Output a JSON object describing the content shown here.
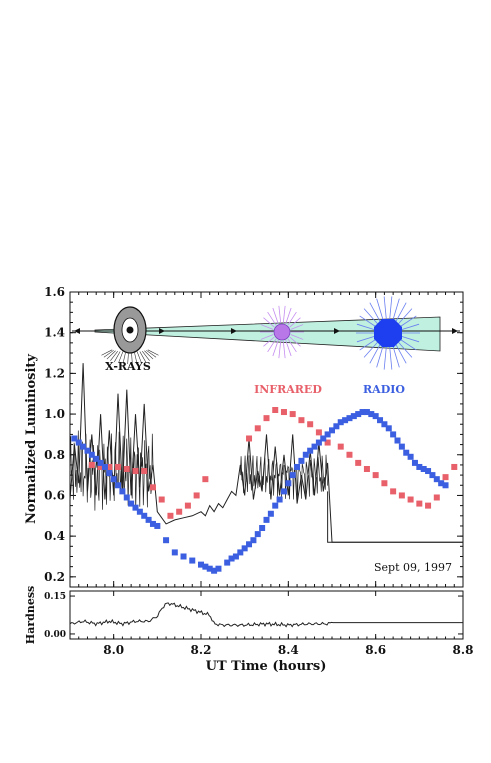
{
  "chart_data": [
    {
      "type": "scatter",
      "panel": "luminosity",
      "xlabel": "UT Time (hours)",
      "ylabel": "Normalized Luminosity",
      "xlim": [
        7.9,
        8.8
      ],
      "ylim": [
        0.15,
        1.6
      ],
      "x_ticks": [
        "8.0",
        "8.2",
        "8.4",
        "8.6",
        "8.8"
      ],
      "x_tick_values": [
        8.0,
        8.2,
        8.4,
        8.6,
        8.8
      ],
      "y_ticks": [
        "0.2",
        "0.4",
        "0.6",
        "0.8",
        "1.0",
        "1.2",
        "1.4",
        "1.6"
      ],
      "y_tick_values": [
        0.2,
        0.4,
        0.6,
        0.8,
        1.0,
        1.2,
        1.4,
        1.6
      ],
      "annotation": "Sept 09, 1997",
      "series": [
        {
          "name": "X-RAYS",
          "color": "#222222",
          "style": "line",
          "x": [
            7.9,
            7.91,
            7.92,
            7.93,
            7.94,
            7.95,
            7.96,
            7.97,
            7.98,
            7.99,
            8.0,
            8.01,
            8.02,
            8.03,
            8.04,
            8.05,
            8.06,
            8.07,
            8.08,
            8.09,
            8.1,
            8.12,
            8.14,
            8.16,
            8.18,
            8.2,
            8.21,
            8.22,
            8.23,
            8.24,
            8.25,
            8.26,
            8.27,
            8.28,
            8.29,
            8.3,
            8.31,
            8.32,
            8.33,
            8.34,
            8.35,
            8.36,
            8.37,
            8.38,
            8.39,
            8.4,
            8.41,
            8.42,
            8.43,
            8.44,
            8.45,
            8.46,
            8.47,
            8.48,
            8.49,
            8.5,
            8.8
          ],
          "y": [
            0.58,
            0.85,
            0.66,
            1.25,
            0.62,
            0.9,
            0.6,
            1.0,
            0.58,
            0.92,
            0.6,
            1.1,
            0.62,
            1.12,
            0.6,
            1.0,
            0.64,
            1.05,
            0.62,
            0.75,
            0.52,
            0.46,
            0.48,
            0.49,
            0.5,
            0.52,
            0.5,
            0.55,
            0.52,
            0.56,
            0.54,
            0.58,
            0.62,
            0.6,
            0.75,
            0.6,
            0.88,
            0.58,
            0.72,
            0.62,
            0.9,
            0.58,
            0.84,
            0.6,
            0.8,
            0.6,
            0.9,
            0.56,
            0.7,
            0.58,
            0.82,
            0.6,
            0.86,
            0.62,
            0.76,
            0.37,
            0.37
          ]
        },
        {
          "name": "INFRARED",
          "color": "#e8606a",
          "style": "markers",
          "x": [
            7.94,
            7.96,
            7.98,
            8.0,
            8.02,
            8.04,
            8.06,
            8.08,
            8.1,
            8.12,
            8.14,
            8.16,
            8.18,
            8.2,
            8.3,
            8.32,
            8.34,
            8.36,
            8.38,
            8.4,
            8.42,
            8.44,
            8.46,
            8.48,
            8.51,
            8.53,
            8.55,
            8.57,
            8.59,
            8.61,
            8.63,
            8.65,
            8.67,
            8.69,
            8.71,
            8.73,
            8.75,
            8.79
          ],
          "y": [
            0.75,
            0.74,
            0.74,
            0.74,
            0.73,
            0.72,
            0.72,
            0.66,
            0.6,
            0.52,
            0.52,
            0.54,
            0.58,
            0.66,
            0.87,
            0.92,
            0.97,
            1.02,
            1.01,
            1.0,
            0.97,
            0.96,
            0.92,
            0.86,
            0.84,
            0.82,
            0.76,
            0.72,
            0.7,
            0.66,
            0.62,
            0.6,
            0.57,
            0.56,
            0.55,
            0.58,
            0.68,
            0.75
          ],
          "x_marks": [
            7.95,
            7.97,
            7.99,
            8.01,
            8.03,
            8.05,
            8.07,
            8.09,
            8.11,
            8.13,
            8.15,
            8.17,
            8.19,
            8.21,
            8.31,
            8.33,
            8.35,
            8.37,
            8.39,
            8.41,
            8.43,
            8.45,
            8.47,
            8.49,
            8.52,
            8.54,
            8.56,
            8.58,
            8.6,
            8.62,
            8.64,
            8.66,
            8.68,
            8.7,
            8.72,
            8.74,
            8.76,
            8.78
          ],
          "y_marks": [
            0.75,
            0.74,
            0.74,
            0.74,
            0.73,
            0.72,
            0.72,
            0.64,
            0.58,
            0.5,
            0.52,
            0.55,
            0.6,
            0.68,
            0.88,
            0.93,
            0.98,
            1.02,
            1.01,
            1.0,
            0.97,
            0.95,
            0.91,
            0.86,
            0.84,
            0.8,
            0.76,
            0.73,
            0.7,
            0.66,
            0.62,
            0.6,
            0.58,
            0.56,
            0.55,
            0.59,
            0.69,
            0.74
          ]
        },
        {
          "name": "RADIO",
          "color": "#3b5fe0",
          "style": "markers",
          "x": [
            7.91,
            7.92,
            7.93,
            7.94,
            7.95,
            7.96,
            7.97,
            7.98,
            7.99,
            8.0,
            8.01,
            8.02,
            8.03,
            8.04,
            8.05,
            8.06,
            8.07,
            8.08,
            8.09,
            8.1,
            8.12,
            8.14,
            8.16,
            8.18,
            8.2,
            8.21,
            8.22,
            8.23,
            8.24,
            8.26,
            8.27,
            8.28,
            8.29,
            8.3,
            8.31,
            8.32,
            8.33,
            8.34,
            8.35,
            8.36,
            8.37,
            8.38,
            8.39,
            8.4,
            8.41,
            8.42,
            8.43,
            8.44,
            8.45,
            8.46,
            8.47,
            8.48,
            8.49,
            8.5,
            8.51,
            8.52,
            8.53,
            8.54,
            8.55,
            8.56,
            8.57,
            8.58,
            8.59,
            8.6,
            8.61,
            8.62,
            8.63,
            8.64,
            8.65,
            8.66,
            8.67,
            8.68,
            8.69,
            8.7,
            8.71,
            8.72,
            8.73,
            8.74,
            8.75,
            8.76
          ],
          "y": [
            0.88,
            0.86,
            0.84,
            0.82,
            0.8,
            0.78,
            0.76,
            0.74,
            0.71,
            0.68,
            0.65,
            0.62,
            0.59,
            0.56,
            0.54,
            0.52,
            0.5,
            0.48,
            0.46,
            0.45,
            0.38,
            0.32,
            0.3,
            0.28,
            0.26,
            0.25,
            0.24,
            0.23,
            0.24,
            0.27,
            0.29,
            0.3,
            0.32,
            0.34,
            0.36,
            0.38,
            0.41,
            0.44,
            0.48,
            0.51,
            0.55,
            0.58,
            0.62,
            0.66,
            0.7,
            0.74,
            0.77,
            0.8,
            0.82,
            0.84,
            0.86,
            0.88,
            0.9,
            0.92,
            0.94,
            0.96,
            0.97,
            0.98,
            0.99,
            1.0,
            1.01,
            1.01,
            1.0,
            0.99,
            0.97,
            0.95,
            0.93,
            0.9,
            0.87,
            0.84,
            0.81,
            0.79,
            0.76,
            0.74,
            0.73,
            0.72,
            0.7,
            0.68,
            0.66,
            0.65
          ]
        }
      ],
      "diagram_labels": {
        "xray": "X-RAYS",
        "infrared": "INFRARED",
        "radio": "RADIO"
      },
      "colors": {
        "jet": "#bff0e0",
        "xray_disk": "#999999",
        "infrared_blob": "#b878e8",
        "radio_blob": "#1d3ff0"
      }
    },
    {
      "type": "line",
      "panel": "hardness",
      "ylabel": "Hardness",
      "xlim": [
        7.9,
        8.8
      ],
      "ylim": [
        -0.02,
        0.17
      ],
      "y_ticks": [
        "0.00",
        "0.15"
      ],
      "y_tick_values": [
        0.0,
        0.15
      ],
      "series": [
        {
          "name": "",
          "color": "#222222",
          "x": [
            7.9,
            7.93,
            7.96,
            7.99,
            8.02,
            8.05,
            8.08,
            8.1,
            8.11,
            8.12,
            8.13,
            8.14,
            8.15,
            8.16,
            8.17,
            8.18,
            8.19,
            8.2,
            8.21,
            8.22,
            8.23,
            8.25,
            8.3,
            8.35,
            8.4,
            8.45,
            8.49,
            8.5,
            8.8
          ],
          "y": [
            0.04,
            0.05,
            0.04,
            0.05,
            0.04,
            0.05,
            0.05,
            0.07,
            0.1,
            0.12,
            0.12,
            0.115,
            0.11,
            0.105,
            0.1,
            0.095,
            0.09,
            0.085,
            0.08,
            0.075,
            0.04,
            0.035,
            0.035,
            0.04,
            0.035,
            0.04,
            0.04,
            0.045,
            0.045
          ]
        }
      ]
    }
  ]
}
